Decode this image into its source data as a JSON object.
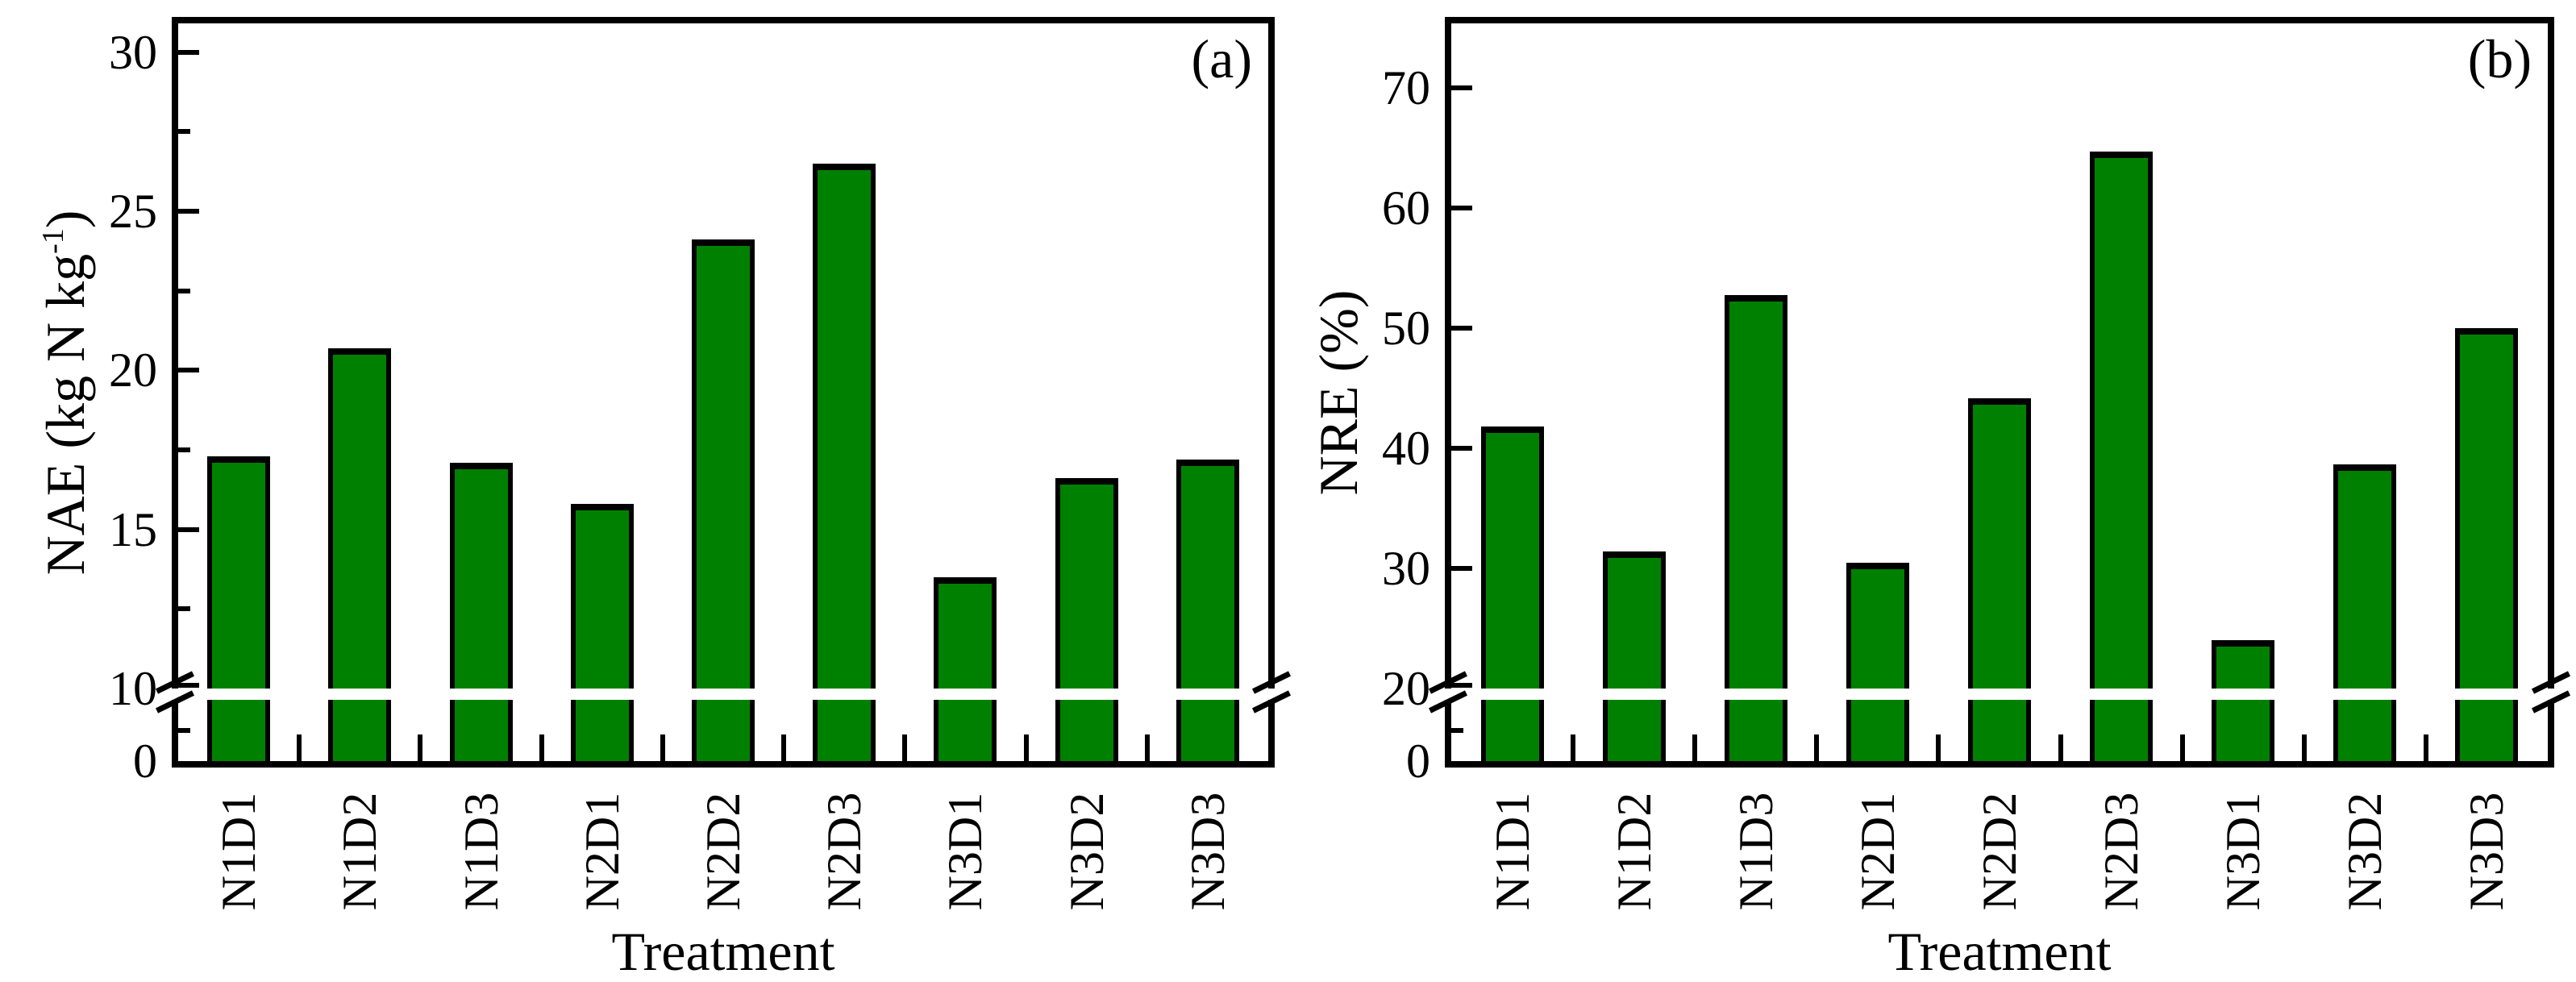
{
  "colors": {
    "background": "#ffffff",
    "bar_fill": "#008000",
    "bar_stroke": "#000000",
    "axis": "#000000",
    "text": "#000000"
  },
  "chart_data": [
    {
      "id": "a",
      "type": "bar",
      "panel_label": "(a)",
      "xlabel": "Treatment",
      "ylabel_prefix": "NAE (kg N kg",
      "ylabel_sup": "-1",
      "ylabel_suffix": ")",
      "categories": [
        "N1D1",
        "N1D2",
        "N1D3",
        "N2D1",
        "N2D2",
        "N2D3",
        "N3D1",
        "N3D2",
        "N3D3"
      ],
      "values": [
        17.3,
        20.7,
        17.1,
        15.8,
        24.1,
        26.5,
        13.5,
        16.6,
        17.2
      ],
      "grid": "off",
      "legend": "none",
      "y_axis": {
        "upper_top": 30.9,
        "break_value": 10,
        "major_ticks": [
          {
            "value": 30,
            "label": "30"
          },
          {
            "value": 25,
            "label": "25"
          },
          {
            "value": 20,
            "label": "20"
          },
          {
            "value": 15,
            "label": "15"
          },
          {
            "value": 10,
            "label": "10"
          }
        ],
        "minor_ticks": [
          27.5,
          22.5,
          17.5,
          12.5
        ],
        "lower_max": 10,
        "lower_minor_ticks": [
          5
        ],
        "zero_label": "0"
      },
      "axis_break": {
        "hidden_range": [
          0,
          10
        ]
      }
    },
    {
      "id": "b",
      "type": "bar",
      "panel_label": "(b)",
      "xlabel": "Treatment",
      "ylabel_prefix": "NRE (%)",
      "ylabel_sup": "",
      "ylabel_suffix": "",
      "categories": [
        "N1D1",
        "N1D2",
        "N1D3",
        "N2D1",
        "N2D2",
        "N2D3",
        "N3D1",
        "N3D2",
        "N3D3"
      ],
      "values": [
        41.8,
        31.4,
        52.8,
        30.5,
        44.2,
        64.7,
        24.0,
        38.7,
        50.0
      ],
      "grid": "off",
      "legend": "none",
      "y_axis": {
        "upper_top": 75.4,
        "break_value": 20,
        "major_ticks": [
          {
            "value": 70,
            "label": "70"
          },
          {
            "value": 60,
            "label": "60"
          },
          {
            "value": 50,
            "label": "50"
          },
          {
            "value": 40,
            "label": "40"
          },
          {
            "value": 30,
            "label": "30"
          },
          {
            "value": 20,
            "label": "20"
          }
        ],
        "minor_ticks": [],
        "lower_max": 20,
        "lower_minor_ticks": [
          10
        ],
        "zero_label": "0"
      },
      "axis_break": {
        "hidden_range": [
          0,
          20
        ]
      }
    }
  ]
}
